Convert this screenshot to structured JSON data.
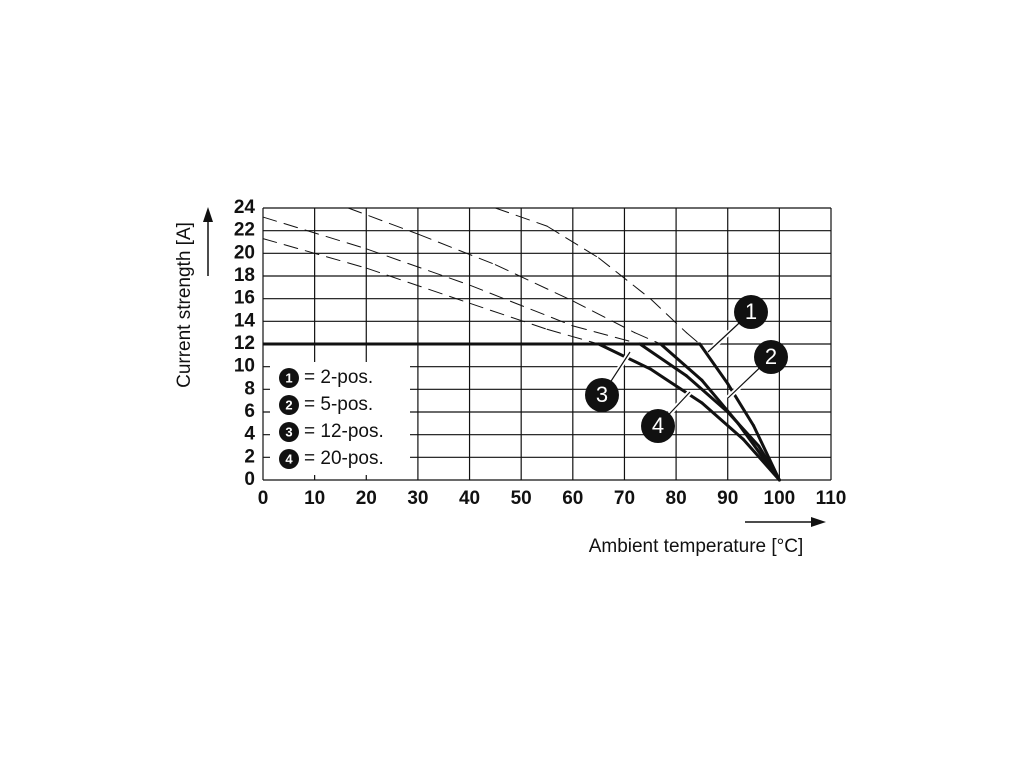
{
  "chart_data": {
    "type": "line",
    "x_label": "Ambient temperature [°C]",
    "y_label": "Current strength [A]",
    "xlim": [
      0,
      110
    ],
    "ylim": [
      0,
      24
    ],
    "xticks": [
      0,
      10,
      20,
      30,
      40,
      50,
      60,
      70,
      80,
      90,
      100,
      110
    ],
    "yticks": [
      0,
      2,
      4,
      6,
      8,
      10,
      12,
      14,
      16,
      18,
      20,
      22,
      24
    ],
    "grid": true,
    "current_limit": 12,
    "color": "#111111",
    "series": [
      {
        "name": "= 2-pos.",
        "label": "1",
        "x": [
          45,
          55,
          65,
          75,
          82,
          84.6,
          90,
          95,
          100
        ],
        "values": [
          24,
          22.4,
          19.6,
          16,
          13,
          12,
          8.5,
          4.8,
          0
        ]
      },
      {
        "name": "= 5-pos.",
        "label": "2",
        "x": [
          16.5,
          30,
          45,
          60,
          72,
          77,
          85,
          92,
          100
        ],
        "values": [
          24,
          21.7,
          19,
          15.8,
          13,
          12,
          8.8,
          5,
          0
        ]
      },
      {
        "name": "= 12-pos.",
        "label": "3",
        "x": [
          0,
          20,
          40,
          60,
          73,
          82,
          90,
          96,
          100
        ],
        "values": [
          23.2,
          20.4,
          17.2,
          13.6,
          12,
          9.2,
          6,
          3,
          0
        ]
      },
      {
        "name": "= 20-pos.",
        "label": "4",
        "x": [
          0,
          20,
          40,
          55,
          65,
          75,
          85,
          93,
          100
        ],
        "values": [
          21.3,
          18.7,
          15.6,
          13.3,
          12,
          9.8,
          6.8,
          3.6,
          0
        ]
      }
    ]
  }
}
